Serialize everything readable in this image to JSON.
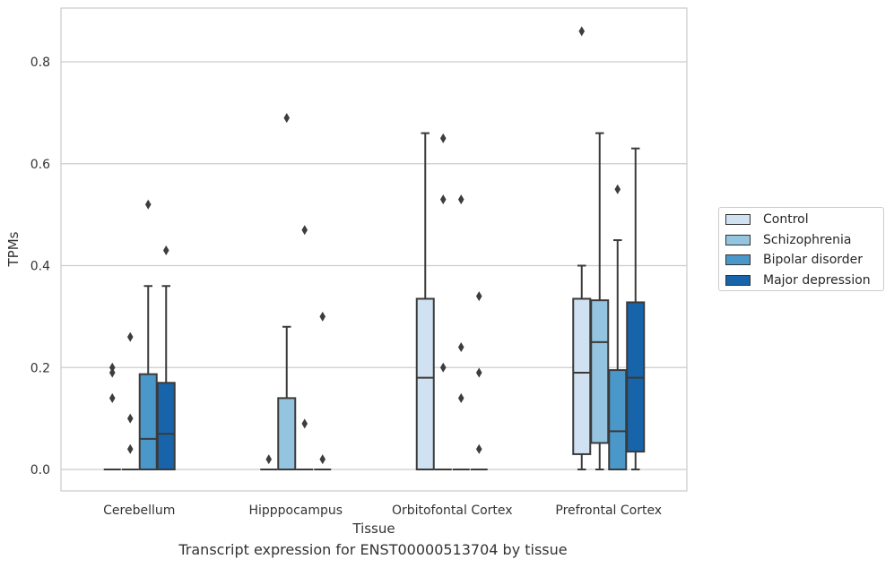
{
  "chart_data": {
    "type": "box",
    "title": "Transcript expression for ENST00000513704 by tissue",
    "xlabel": "Tissue",
    "ylabel": "TPMs",
    "ylim": [
      -0.042,
      0.905
    ],
    "yticks": [
      0.0,
      0.2,
      0.4,
      0.6,
      0.8
    ],
    "ytick_labels": [
      "0.0",
      "0.2",
      "0.4",
      "0.6",
      "0.8"
    ],
    "grid": "horizontal",
    "legend_position": "right",
    "categories": [
      "Cerebellum",
      "Hipppocampus",
      "Orbitofontal Cortex",
      "Prefrontal Cortex"
    ],
    "series": [
      {
        "name": "Control",
        "color": "#d0e1f2",
        "boxes": [
          {
            "q1": 0.0,
            "median": 0.0,
            "q3": 0.0,
            "whislo": 0.0,
            "whishi": 0.0,
            "fliers": [
              0.2,
              0.19,
              0.14
            ]
          },
          {
            "q1": 0.0,
            "median": 0.0,
            "q3": 0.0,
            "whislo": 0.0,
            "whishi": 0.0,
            "fliers": [
              0.02
            ]
          },
          {
            "q1": 0.0,
            "median": 0.18,
            "q3": 0.335,
            "whislo": 0.0,
            "whishi": 0.66,
            "fliers": []
          },
          {
            "q1": 0.03,
            "median": 0.19,
            "q3": 0.335,
            "whislo": 0.0,
            "whishi": 0.4,
            "fliers": [
              0.86
            ]
          }
        ]
      },
      {
        "name": "Schizophrenia",
        "color": "#94c4df",
        "boxes": [
          {
            "q1": 0.0,
            "median": 0.0,
            "q3": 0.0,
            "whislo": 0.0,
            "whishi": 0.0,
            "fliers": [
              0.26,
              0.1,
              0.04
            ]
          },
          {
            "q1": 0.0,
            "median": 0.0,
            "q3": 0.14,
            "whislo": 0.0,
            "whishi": 0.28,
            "fliers": [
              0.69
            ]
          },
          {
            "q1": 0.0,
            "median": 0.0,
            "q3": 0.0,
            "whislo": 0.0,
            "whishi": 0.0,
            "fliers": [
              0.65,
              0.53,
              0.2
            ]
          },
          {
            "q1": 0.052,
            "median": 0.25,
            "q3": 0.332,
            "whislo": 0.0,
            "whishi": 0.66,
            "fliers": []
          }
        ]
      },
      {
        "name": "Bipolar disorder",
        "color": "#4a98c9",
        "boxes": [
          {
            "q1": 0.0,
            "median": 0.06,
            "q3": 0.187,
            "whislo": 0.0,
            "whishi": 0.36,
            "fliers": [
              0.52
            ]
          },
          {
            "q1": 0.0,
            "median": 0.0,
            "q3": 0.0,
            "whislo": 0.0,
            "whishi": 0.0,
            "fliers": [
              0.47,
              0.09
            ]
          },
          {
            "q1": 0.0,
            "median": 0.0,
            "q3": 0.0,
            "whislo": 0.0,
            "whishi": 0.0,
            "fliers": [
              0.53,
              0.24,
              0.14
            ]
          },
          {
            "q1": 0.0,
            "median": 0.075,
            "q3": 0.195,
            "whislo": 0.0,
            "whishi": 0.45,
            "fliers": [
              0.55
            ]
          }
        ]
      },
      {
        "name": "Major depression",
        "color": "#1764ab",
        "boxes": [
          {
            "q1": 0.0,
            "median": 0.07,
            "q3": 0.17,
            "whislo": 0.0,
            "whishi": 0.36,
            "fliers": [
              0.43
            ]
          },
          {
            "q1": 0.0,
            "median": 0.0,
            "q3": 0.0,
            "whislo": 0.0,
            "whishi": 0.0,
            "fliers": [
              0.3,
              0.02
            ]
          },
          {
            "q1": 0.0,
            "median": 0.0,
            "q3": 0.0,
            "whislo": 0.0,
            "whishi": 0.0,
            "fliers": [
              0.34,
              0.19,
              0.04
            ]
          },
          {
            "q1": 0.035,
            "median": 0.18,
            "q3": 0.328,
            "whislo": 0.0,
            "whishi": 0.63,
            "fliers": []
          }
        ]
      }
    ]
  }
}
